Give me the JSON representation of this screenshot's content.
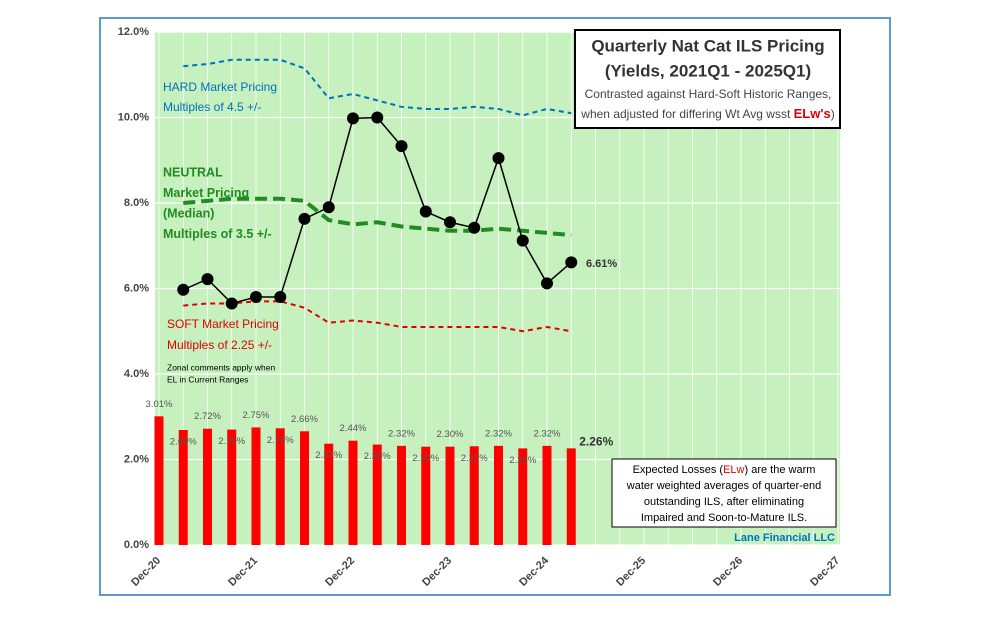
{
  "chart_data": {
    "type": "bar",
    "title": "Quarterly Nat Cat ILS Pricing",
    "subtitle": "(Yields, 2021Q1 - 2025Q1)",
    "subtitle_lines": [
      "Contrasted against Hard-Soft Historic Ranges,",
      "when adjusted for differing Wt Avg wsst ",
      "ELw's",
      ")"
    ],
    "categories": [
      "Dec-20",
      null,
      null,
      null,
      "Dec-21",
      null,
      null,
      null,
      "Dec-22",
      null,
      null,
      null,
      "Dec-23",
      null,
      null,
      null,
      "Dec-24",
      null,
      null,
      null,
      "Dec-25",
      null,
      null,
      null,
      "Dec-26",
      null,
      null,
      null,
      "Dec-27"
    ],
    "ylim": [
      0,
      12
    ],
    "yticks": [
      {
        "value": 0,
        "label": "0.0%"
      },
      {
        "value": 2,
        "label": "2.0%"
      },
      {
        "value": 4,
        "label": "4.0%"
      },
      {
        "value": 6,
        "label": "6.0%"
      },
      {
        "value": 8,
        "label": "8.0%"
      },
      {
        "value": 10,
        "label": "10.0%"
      },
      {
        "value": 12,
        "label": "12.0%"
      }
    ],
    "grid": true,
    "background": "#c6f0bd",
    "series": [
      {
        "type": "bar",
        "color": "#ff0000",
        "values": [
          3.01,
          2.69,
          2.72,
          2.7,
          2.75,
          2.73,
          2.66,
          2.37,
          2.44,
          2.35,
          2.32,
          2.3,
          2.3,
          2.31,
          2.32,
          2.26,
          2.32,
          2.26,
          null,
          null,
          null,
          null,
          null,
          null,
          null,
          null,
          null,
          null,
          null
        ],
        "value_labels": [
          "3.01%",
          "2.69%",
          "2.72%",
          "2.70%",
          "2.75%",
          "2.73%",
          "2.66%",
          "2.37%",
          "2.44%",
          "2.35%",
          "2.32%",
          "2.30%",
          "2.30%",
          "2.31%",
          "2.32%",
          "2.26%",
          "2.32%",
          "2.26%",
          null,
          null,
          null,
          null,
          null,
          null,
          null,
          null,
          null,
          null,
          null
        ]
      },
      {
        "type": "line",
        "color": "#0070c0",
        "dashed": true,
        "width": 2,
        "values": [
          null,
          11.2,
          11.25,
          11.35,
          11.35,
          11.35,
          11.15,
          10.45,
          10.55,
          10.4,
          10.25,
          10.2,
          10.2,
          10.25,
          10.2,
          10.05,
          10.2,
          10.1,
          null,
          null,
          null,
          null,
          null,
          null,
          null,
          null,
          null,
          null,
          null
        ]
      },
      {
        "type": "line",
        "color": "#238b23",
        "dashed": true,
        "width": 4,
        "values": [
          null,
          8.0,
          8.05,
          8.1,
          8.1,
          8.1,
          8.05,
          7.6,
          7.5,
          7.55,
          7.45,
          7.4,
          7.35,
          7.35,
          7.4,
          7.35,
          7.3,
          7.25,
          null,
          null,
          null,
          null,
          null,
          null,
          null,
          null,
          null,
          null,
          null
        ]
      },
      {
        "type": "line",
        "color": "#e00000",
        "dashed": true,
        "width": 2,
        "values": [
          null,
          5.6,
          5.65,
          5.65,
          5.7,
          5.7,
          5.55,
          5.2,
          5.25,
          5.2,
          5.1,
          5.1,
          5.1,
          5.1,
          5.1,
          5.0,
          5.1,
          5.0,
          null,
          null,
          null,
          null,
          null,
          null,
          null,
          null,
          null,
          null,
          null
        ]
      },
      {
        "type": "line",
        "color": "#000000",
        "dashed": false,
        "width": 1.5,
        "markers": true,
        "values": [
          null,
          5.97,
          6.22,
          5.65,
          5.8,
          5.8,
          7.63,
          7.9,
          9.98,
          10.0,
          9.33,
          7.8,
          7.55,
          7.42,
          9.05,
          7.12,
          6.12,
          6.61,
          null,
          null,
          null,
          null,
          null,
          null,
          null,
          null,
          null,
          null,
          null
        ]
      }
    ],
    "annotations": [
      {
        "lines": [
          "HARD Market Pricing",
          "Multiples of 4.5 +/-"
        ],
        "color": "#0070c0"
      },
      {
        "lines": [
          "NEUTRAL",
          "Market Pricing",
          "(Median)",
          "Multiples of 3.5 +/-"
        ],
        "color": "#238b23"
      },
      {
        "lines": [
          "SOFT Market Pricing",
          "Multiples of 2.25 +/-"
        ],
        "color": "#e00000"
      },
      {
        "lines": [
          "Zonal comments apply when",
          "EL in Current Ranges"
        ],
        "color": "#000000"
      },
      {
        "lines": [
          "6.61%"
        ],
        "color": "#333333"
      }
    ],
    "note": [
      "Expected Losses (",
      "ELw",
      ") are the warm",
      "water weighted averages of quarter-end",
      "outstanding ILS, after eliminating",
      "Impaired and Soon-to-Mature ILS."
    ],
    "source": "Lane Financial LLC"
  }
}
